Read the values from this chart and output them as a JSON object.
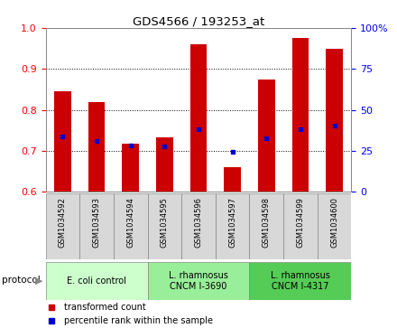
{
  "title": "GDS4566 / 193253_at",
  "samples": [
    "GSM1034592",
    "GSM1034593",
    "GSM1034594",
    "GSM1034595",
    "GSM1034596",
    "GSM1034597",
    "GSM1034598",
    "GSM1034599",
    "GSM1034600"
  ],
  "transformed_count": [
    0.845,
    0.82,
    0.718,
    0.733,
    0.96,
    0.66,
    0.875,
    0.975,
    0.95
  ],
  "percentile_rank": [
    0.735,
    0.725,
    0.713,
    0.712,
    0.753,
    0.698,
    0.73,
    0.752,
    0.762
  ],
  "ylim": [
    0.6,
    1.0
  ],
  "yticks_left": [
    0.6,
    0.7,
    0.8,
    0.9,
    1.0
  ],
  "ytick_right_labels": [
    "0",
    "25",
    "50",
    "75",
    "100%"
  ],
  "bar_color": "#cc0000",
  "dot_color": "#0000cc",
  "bar_width": 0.5,
  "group_colors": [
    "#ccffcc",
    "#99ee99",
    "#55cc55"
  ],
  "group_labels": [
    "E. coli control",
    "L. rhamnosus\nCNCM I-3690",
    "L. rhamnosus\nCNCM I-4317"
  ],
  "group_ranges": [
    [
      0,
      3
    ],
    [
      3,
      6
    ],
    [
      6,
      9
    ]
  ],
  "legend_labels": [
    "transformed count",
    "percentile rank within the sample"
  ],
  "legend_colors": [
    "#cc0000",
    "#0000cc"
  ]
}
